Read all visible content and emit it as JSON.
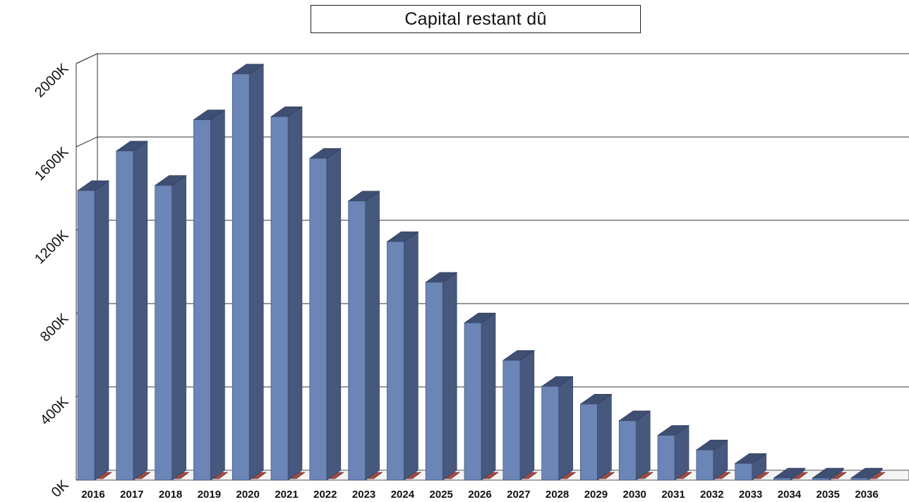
{
  "chart_data": {
    "type": "bar",
    "title": "Capital restant dû",
    "categories": [
      "2016",
      "2017",
      "2018",
      "2019",
      "2020",
      "2021",
      "2022",
      "2023",
      "2024",
      "2025",
      "2026",
      "2027",
      "2028",
      "2029",
      "2030",
      "2031",
      "2032",
      "2033",
      "2034",
      "2035",
      "2036"
    ],
    "series": [
      {
        "values": [
          1390,
          1580,
          1415,
          1730,
          1950,
          1745,
          1545,
          1340,
          1145,
          950,
          755,
          575,
          450,
          365,
          285,
          215,
          145,
          80,
          10,
          10,
          10
        ],
        "color": "#6a85b6"
      },
      {
        "values": [
          5,
          5,
          5,
          5,
          5,
          5,
          5,
          5,
          5,
          5,
          5,
          5,
          5,
          5,
          5,
          5,
          5,
          5,
          5,
          5,
          5
        ],
        "color": "#a54a45"
      }
    ],
    "yticks": [
      "0K",
      "400K",
      "800K",
      "1200K",
      "1600K",
      "2000K"
    ],
    "ylim": [
      0,
      2000
    ],
    "unit": "K",
    "grid": true,
    "legend": "none"
  }
}
